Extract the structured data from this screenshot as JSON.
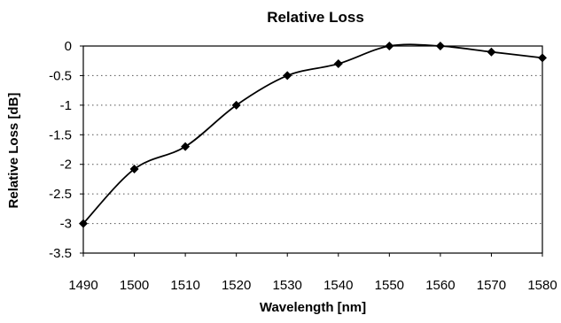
{
  "chart_data": {
    "type": "line",
    "title": "Relative Loss",
    "xlabel": "Wavelength [nm]",
    "ylabel": "Relative Loss [dB]",
    "xlim": [
      1490,
      1580
    ],
    "ylim": [
      -3.5,
      0
    ],
    "x_ticks": [
      1490,
      1500,
      1510,
      1520,
      1530,
      1540,
      1550,
      1560,
      1570,
      1580
    ],
    "y_ticks": [
      0,
      -0.5,
      -1,
      -1.5,
      -2,
      -2.5,
      -3,
      -3.5
    ],
    "y_tick_labels": [
      "0",
      "-0.5",
      "-1",
      "-1.5",
      "-2",
      "-2.5",
      "-3",
      "-3.5"
    ],
    "grid": true,
    "grid_style": "dotted horizontal",
    "legend": "none",
    "series": [
      {
        "marker": "diamond",
        "color": "#000000",
        "x": [
          1490,
          1500,
          1510,
          1520,
          1530,
          1540,
          1550,
          1560,
          1570,
          1580
        ],
        "y": [
          -3.0,
          -2.08,
          -1.7,
          -1.0,
          -0.5,
          -0.3,
          0.0,
          0.0,
          -0.1,
          -0.2
        ]
      }
    ]
  }
}
